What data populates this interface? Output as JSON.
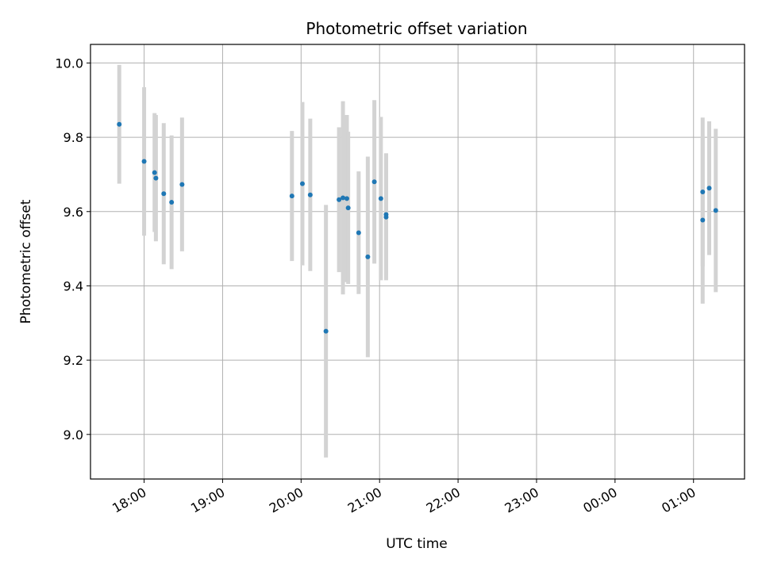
{
  "chart_data": {
    "type": "scatter",
    "title": "Photometric offset variation",
    "xlabel": "UTC time",
    "ylabel": "Photometric offset",
    "x_is_time": true,
    "xlim": [
      "17:19",
      "01:39"
    ],
    "ylim": [
      8.88,
      10.05
    ],
    "x_ticks": [
      "18:00",
      "19:00",
      "20:00",
      "21:00",
      "22:00",
      "23:00",
      "00:00",
      "01:00"
    ],
    "y_ticks": [
      9.0,
      9.2,
      9.4,
      9.6,
      9.8,
      10.0
    ],
    "y_tick_labels": [
      "9.0",
      "9.2",
      "9.4",
      "9.6",
      "9.8",
      "10.0"
    ],
    "grid": true,
    "colors": {
      "point": "#1f77b4",
      "errorbar": "#d3d3d3",
      "grid": "#b0b0b0"
    },
    "points": [
      {
        "t": "17:41",
        "y": 9.835,
        "err": 0.16
      },
      {
        "t": "18:00",
        "y": 9.735,
        "err": 0.2
      },
      {
        "t": "18:08",
        "y": 9.705,
        "err": 0.16
      },
      {
        "t": "18:09",
        "y": 9.69,
        "err": 0.17
      },
      {
        "t": "18:15",
        "y": 9.648,
        "err": 0.19
      },
      {
        "t": "18:21",
        "y": 9.625,
        "err": 0.18
      },
      {
        "t": "18:29",
        "y": 9.673,
        "err": 0.18
      },
      {
        "t": "19:53",
        "y": 9.642,
        "err": 0.175
      },
      {
        "t": "20:01",
        "y": 9.675,
        "err": 0.22
      },
      {
        "t": "20:07",
        "y": 9.645,
        "err": 0.205
      },
      {
        "t": "20:19",
        "y": 9.278,
        "err": 0.34
      },
      {
        "t": "20:29",
        "y": 9.632,
        "err": 0.195
      },
      {
        "t": "20:32",
        "y": 9.637,
        "err": 0.26
      },
      {
        "t": "20:35",
        "y": 9.635,
        "err": 0.225
      },
      {
        "t": "20:36",
        "y": 9.61,
        "err": 0.205
      },
      {
        "t": "20:44",
        "y": 9.543,
        "err": 0.165
      },
      {
        "t": "20:51",
        "y": 9.478,
        "err": 0.27
      },
      {
        "t": "20:56",
        "y": 9.68,
        "err": 0.22
      },
      {
        "t": "21:01",
        "y": 9.635,
        "err": 0.22
      },
      {
        "t": "21:05",
        "y": 9.585,
        "err": 0.17
      },
      {
        "t": "21:05",
        "y": 9.592,
        "err": 0.165
      },
      {
        "t": "01:07",
        "y": 9.577,
        "err": 0.225
      },
      {
        "t": "01:07",
        "y": 9.653,
        "err": 0.2
      },
      {
        "t": "01:12",
        "y": 9.663,
        "err": 0.18
      },
      {
        "t": "01:17",
        "y": 9.603,
        "err": 0.22
      }
    ]
  }
}
